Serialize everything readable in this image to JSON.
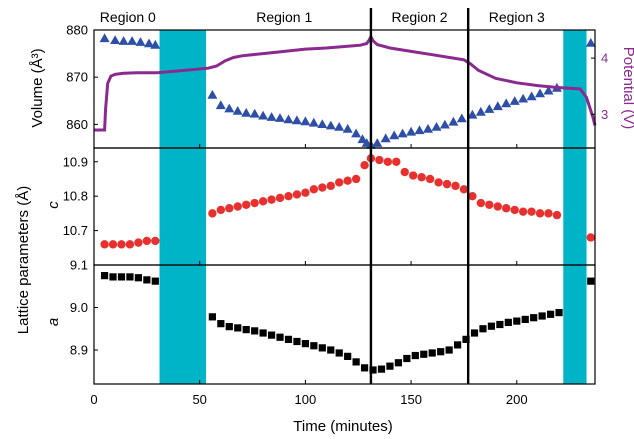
{
  "chart_data": {
    "type": "scatter",
    "xlabel": "Time (minutes)",
    "xlim": [
      0,
      237
    ],
    "x_ticks": [
      0,
      50,
      100,
      150,
      200
    ],
    "vertical_lines": [
      131,
      177
    ],
    "shaded_ranges": [
      [
        31,
        53
      ],
      [
        222,
        233
      ]
    ],
    "shade_color": "#00B4C8",
    "regions": [
      {
        "label": "Region 0",
        "x": 16
      },
      {
        "label": "Region 1",
        "x": 90
      },
      {
        "label": "Region 2",
        "x": 154
      },
      {
        "label": "Region 3",
        "x": 200
      }
    ],
    "shared_ylabel": "Lattice parameters (Å)",
    "panels": [
      {
        "ylabel": "Volume (Å³)",
        "ylim": [
          855,
          880
        ],
        "y_ticks": [
          860,
          870,
          880
        ],
        "right_axis": {
          "ylabel": "Potential (V)",
          "ylim": [
            2.4,
            4.5
          ],
          "y_ticks": [
            3,
            4
          ],
          "color": "#8B2A8E"
        },
        "series": [
          {
            "marker": "triangle",
            "color": "#2E4FA8",
            "axis": "left",
            "x": [
              5,
              10,
              14,
              18,
              22,
              26,
              29,
              56,
              60,
              64,
              68,
              72,
              76,
              80,
              84,
              88,
              92,
              96,
              100,
              104,
              108,
              112,
              116,
              120,
              124,
              127,
              129,
              131,
              134,
              138,
              142,
              146,
              150,
              154,
              158,
              162,
              166,
              170,
              174,
              179,
              183,
              187,
              191,
              195,
              199,
              203,
              207,
              211,
              215,
              219,
              235
            ],
            "y": [
              878.2,
              877.8,
              877.6,
              877.6,
              877.4,
              877.1,
              876.8,
              866.2,
              864.0,
              863.3,
              862.8,
              862.4,
              862.2,
              861.8,
              861.5,
              861.3,
              861.0,
              860.8,
              860.6,
              860.3,
              860.0,
              859.7,
              859.4,
              859.0,
              858.0,
              856.8,
              856.0,
              855.6,
              856.0,
              857.0,
              857.6,
              858.0,
              858.4,
              858.7,
              859.0,
              859.4,
              859.9,
              860.5,
              861.2,
              862.0,
              862.6,
              863.2,
              863.8,
              864.4,
              864.9,
              865.4,
              865.9,
              866.5,
              867.1,
              867.7,
              877.2
            ]
          },
          {
            "type": "line",
            "color": "#8B2A8E",
            "axis": "right",
            "x": [
              0,
              5,
              5.5,
              6.5,
              8,
              10,
              14,
              20,
              26,
              30,
              54,
              58,
              62,
              66,
              70,
              80,
              90,
              100,
              110,
              120,
              126,
              129,
              130,
              131,
              132,
              134,
              140,
              150,
              160,
              170,
              175,
              178,
              182,
              190,
              200,
              210,
              218,
              222,
              226,
              230,
              233,
              236,
              237
            ],
            "y": [
              2.72,
              2.72,
              3.1,
              3.55,
              3.68,
              3.71,
              3.73,
              3.74,
              3.74,
              3.74,
              3.82,
              3.86,
              3.95,
              4.01,
              4.04,
              4.08,
              4.12,
              4.16,
              4.18,
              4.21,
              4.23,
              4.26,
              4.31,
              4.38,
              4.31,
              4.24,
              4.18,
              4.12,
              4.06,
              4.0,
              3.97,
              3.9,
              3.78,
              3.64,
              3.56,
              3.51,
              3.48,
              3.47,
              3.46,
              3.45,
              3.3,
              2.95,
              2.8
            ]
          }
        ]
      },
      {
        "ylabel": "c",
        "ylim": [
          10.6,
          10.94
        ],
        "y_ticks": [
          10.7,
          10.8,
          10.9
        ],
        "series": [
          {
            "marker": "circle",
            "color": "#E8312E",
            "x": [
              5,
              9,
              13,
              17,
              21,
              25,
              29,
              56,
              60,
              64,
              68,
              72,
              76,
              80,
              84,
              88,
              92,
              96,
              100,
              104,
              108,
              112,
              116,
              120,
              124,
              128,
              131,
              135,
              139,
              143,
              147,
              151,
              155,
              159,
              163,
              167,
              171,
              175,
              179,
              183,
              187,
              191,
              195,
              199,
              203,
              207,
              211,
              215,
              219,
              235
            ],
            "y": [
              10.66,
              10.66,
              10.66,
              10.66,
              10.665,
              10.67,
              10.67,
              10.75,
              10.76,
              10.765,
              10.77,
              10.775,
              10.78,
              10.785,
              10.79,
              10.795,
              10.8,
              10.805,
              10.81,
              10.82,
              10.825,
              10.83,
              10.84,
              10.845,
              10.85,
              10.89,
              10.91,
              10.905,
              10.9,
              10.9,
              10.87,
              10.86,
              10.855,
              10.85,
              10.84,
              10.835,
              10.83,
              10.82,
              10.8,
              10.78,
              10.775,
              10.77,
              10.765,
              10.76,
              10.755,
              10.755,
              10.75,
              10.75,
              10.745,
              10.68
            ]
          }
        ]
      },
      {
        "ylabel": "a",
        "ylim": [
          8.82,
          9.1
        ],
        "y_ticks": [
          8.9,
          9.0,
          9.1
        ],
        "series": [
          {
            "marker": "square",
            "color": "#000000",
            "x": [
              5,
              9,
              13,
              17,
              21,
              25,
              29,
              56,
              60,
              64,
              68,
              72,
              76,
              80,
              84,
              88,
              92,
              96,
              100,
              104,
              108,
              112,
              116,
              120,
              124,
              128,
              132,
              136,
              140,
              144,
              148,
              152,
              156,
              160,
              164,
              168,
              172,
              176,
              180,
              184,
              188,
              192,
              196,
              200,
              204,
              208,
              212,
              216,
              220,
              235
            ],
            "y": [
              9.075,
              9.072,
              9.072,
              9.072,
              9.07,
              9.065,
              9.062,
              8.978,
              8.962,
              8.955,
              8.952,
              8.948,
              8.945,
              8.94,
              8.935,
              8.93,
              8.925,
              8.92,
              8.915,
              8.91,
              8.905,
              8.9,
              8.893,
              8.885,
              8.872,
              8.858,
              8.853,
              8.855,
              8.862,
              8.87,
              8.88,
              8.887,
              8.89,
              8.893,
              8.896,
              8.9,
              8.912,
              8.925,
              8.94,
              8.95,
              8.956,
              8.96,
              8.965,
              8.968,
              8.972,
              8.976,
              8.98,
              8.984,
              8.988,
              9.062
            ]
          }
        ]
      }
    ]
  }
}
